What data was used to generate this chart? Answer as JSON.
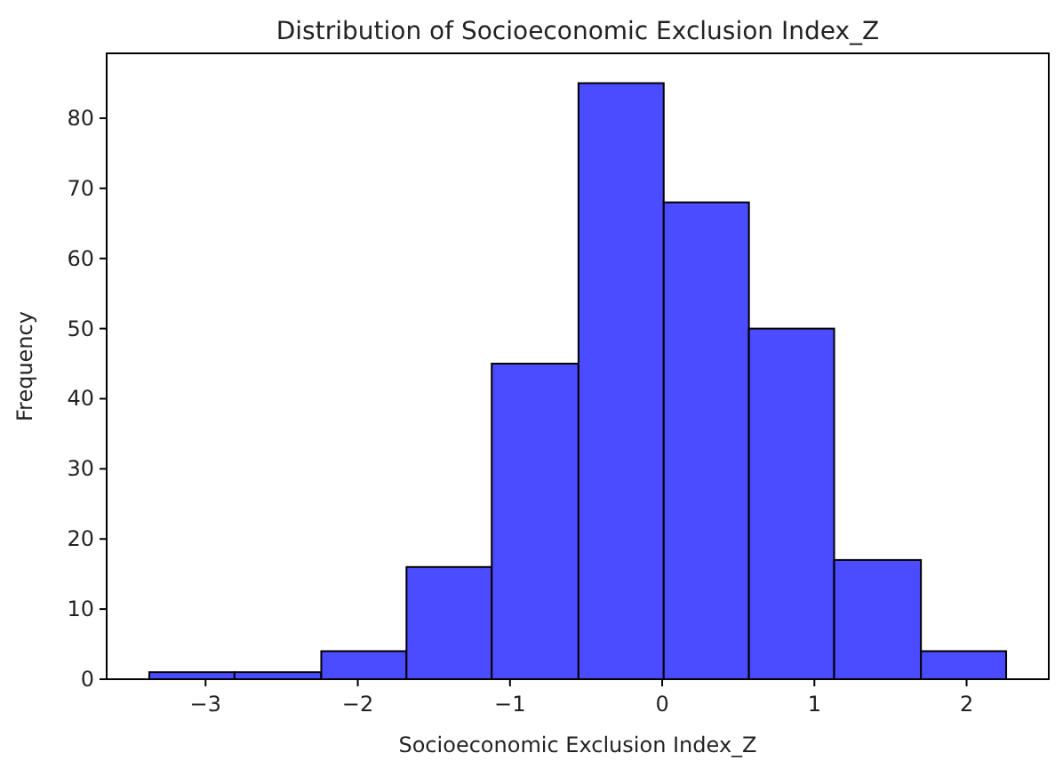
{
  "chart_data": {
    "type": "histogram",
    "title": "Distribution of Socioeconomic Exclusion Index_Z",
    "xlabel": "Socioeconomic Exclusion Index_Z",
    "ylabel": "Frequency",
    "bins": [
      -3.37,
      -2.81,
      -2.24,
      -1.68,
      -1.12,
      -0.55,
      0.01,
      0.57,
      1.13,
      1.7,
      2.26
    ],
    "values": [
      1,
      1,
      4,
      16,
      45,
      85,
      68,
      50,
      17,
      4
    ],
    "color": "#4b4bff",
    "xlim": [
      -3.65,
      2.54
    ],
    "ylim": [
      0,
      89.25
    ],
    "xticks": [
      {
        "value": -3,
        "label": "−3"
      },
      {
        "value": -2,
        "label": "−2"
      },
      {
        "value": -1,
        "label": "−1"
      },
      0,
      1,
      2
    ],
    "yticks": [
      0,
      10,
      20,
      30,
      40,
      50,
      60,
      70,
      80
    ],
    "grid": false
  }
}
